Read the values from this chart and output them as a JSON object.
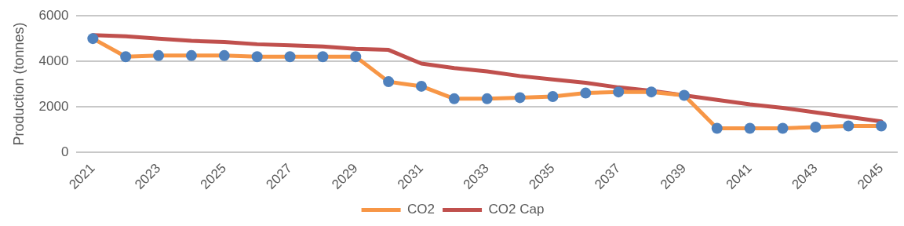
{
  "chart_data": {
    "type": "line",
    "ylabel": "Production (tonnes)",
    "categories": [
      "2021",
      null,
      "2023",
      null,
      "2025",
      null,
      "2027",
      null,
      "2029",
      null,
      "2031",
      null,
      "2033",
      null,
      "2035",
      null,
      "2037",
      null,
      "2039",
      null,
      "2041",
      null,
      "2043",
      null,
      "2045"
    ],
    "series": [
      {
        "name": "CO2",
        "color": "#f79646",
        "colors": [
          "#4f81bd",
          "#4f81bd",
          "#4f81bd",
          "#4f81bd",
          "#4f81bd",
          "#4f81bd",
          "#4f81bd",
          "#4f81bd",
          "#4f81bd",
          "#4f81bd",
          "#4f81bd",
          "#4f81bd",
          "#4f81bd",
          "#4f81bd",
          "#4f81bd",
          "#4f81bd",
          "#4f81bd",
          "#4f81bd",
          "#4f81bd",
          "#4f81bd",
          "#4f81bd",
          "#4f81bd",
          "#4f81bd",
          "#4f81bd",
          "#4f81bd"
        ],
        "marker": "circle",
        "values": [
          5000,
          4200,
          4250,
          4250,
          4250,
          4200,
          4200,
          4200,
          4200,
          3100,
          2900,
          2350,
          2350,
          2400,
          2450,
          2600,
          2650,
          2650,
          2500,
          1050,
          1050,
          1050,
          1100,
          1150,
          1150
        ]
      },
      {
        "name": "CO2 Cap",
        "color": "#c0504d",
        "marker": "none",
        "values": [
          5150,
          5100,
          5000,
          4900,
          4850,
          4750,
          4700,
          4650,
          4550,
          4500,
          3900,
          3700,
          3550,
          3350,
          3200,
          3050,
          2850,
          2700,
          2500,
          2300,
          2100,
          1950,
          1750,
          1550,
          1350
        ]
      }
    ],
    "ylim": [
      0,
      6000
    ],
    "yticks": [
      0,
      2000,
      4000,
      6000
    ],
    "grid": "y",
    "legend": "bottom"
  }
}
